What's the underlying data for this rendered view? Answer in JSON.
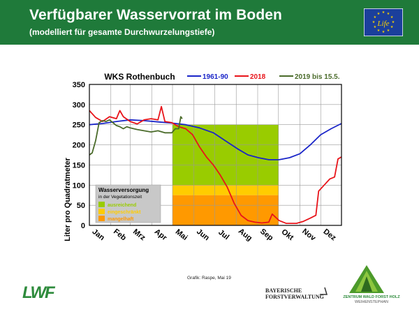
{
  "header": {
    "title": "Verfügbarer Wasservorrat im Boden",
    "subtitle": "(modelliert für gesamte Durchwurzelungstiefe)",
    "eu_logo_text": "Life"
  },
  "colors": {
    "header_bg": "#1f7a3a",
    "series_1961_90": "#1a25c8",
    "series_2018": "#e8141a",
    "series_2019": "#4a6b2a",
    "ausreichend": "#99cc00",
    "eingeschraenkt": "#ffcc00",
    "mangelhaft": "#ff9900"
  },
  "credit": "Grafik: Raspe, Mai 19",
  "logos": {
    "lwf": "LWF",
    "bf_line1": "BAYERISCHE",
    "bf_line2": "FORSTVERWALTUNG",
    "zw_line1": "ZENTRUM WALD FORST HOLZ",
    "zw_line2": "WEIHENSTEPHAN"
  },
  "chart_data": {
    "type": "line",
    "title": "WKS Rothenbuch",
    "xlabel": "",
    "ylabel": "Liter pro Quadratmeter",
    "ylim": [
      0,
      350
    ],
    "yticks": [
      0,
      50,
      100,
      150,
      200,
      250,
      300,
      350
    ],
    "x_unit": "day of year",
    "xlim": [
      1,
      365
    ],
    "grid": true,
    "legend_position": "top",
    "months": [
      "Jan",
      "Feb",
      "Mrz",
      "Apr",
      "Mai",
      "Jun",
      "Jul",
      "Aug",
      "Sep",
      "Okt",
      "Nov",
      "Dez"
    ],
    "bands": {
      "x_range": [
        "Mai",
        "Okt"
      ],
      "x_days": [
        121,
        274
      ],
      "levels": [
        {
          "label": "ausreichend",
          "from": 100,
          "to": 250,
          "color": "#99cc00"
        },
        {
          "label": "eingeschränkt",
          "from": 75,
          "to": 100,
          "color": "#ffcc00"
        },
        {
          "label": "mangelhaft",
          "from": 0,
          "to": 75,
          "color": "#ff9900"
        }
      ]
    },
    "band_legend": {
      "title": "Wasserversorgung",
      "subtitle": "in der Vegetationszeit"
    },
    "series": [
      {
        "name": "1961-90",
        "color": "#1a25c8",
        "x": [
          1,
          20,
          40,
          60,
          80,
          100,
          120,
          140,
          160,
          180,
          200,
          215,
          230,
          245,
          260,
          275,
          290,
          305,
          320,
          335,
          350,
          365
        ],
        "y": [
          250,
          253,
          258,
          262,
          260,
          257,
          254,
          250,
          242,
          230,
          207,
          190,
          175,
          168,
          163,
          163,
          168,
          178,
          200,
          225,
          240,
          253
        ]
      },
      {
        "name": "2018",
        "color": "#e8141a",
        "x": [
          1,
          10,
          20,
          30,
          40,
          45,
          50,
          60,
          70,
          80,
          90,
          100,
          105,
          110,
          120,
          130,
          140,
          150,
          160,
          170,
          180,
          190,
          200,
          210,
          220,
          230,
          240,
          250,
          260,
          265,
          275,
          285,
          300,
          310,
          320,
          328,
          332,
          340,
          348,
          355,
          360,
          365
        ],
        "y": [
          285,
          268,
          258,
          270,
          265,
          285,
          270,
          258,
          252,
          262,
          265,
          262,
          295,
          258,
          255,
          245,
          240,
          225,
          195,
          170,
          150,
          125,
          95,
          55,
          25,
          12,
          8,
          6,
          8,
          28,
          12,
          5,
          5,
          10,
          18,
          25,
          85,
          100,
          115,
          120,
          165,
          170
        ]
      },
      {
        "name": "2019 bis 15.5.",
        "color": "#4a6b2a",
        "x": [
          1,
          5,
          10,
          15,
          20,
          25,
          30,
          35,
          40,
          45,
          50,
          55,
          60,
          70,
          80,
          90,
          100,
          110,
          120,
          125,
          130,
          133,
          135
        ],
        "y": [
          175,
          180,
          210,
          255,
          260,
          258,
          262,
          255,
          248,
          245,
          240,
          245,
          242,
          238,
          235,
          232,
          235,
          230,
          230,
          240,
          240,
          270,
          265
        ]
      }
    ]
  }
}
